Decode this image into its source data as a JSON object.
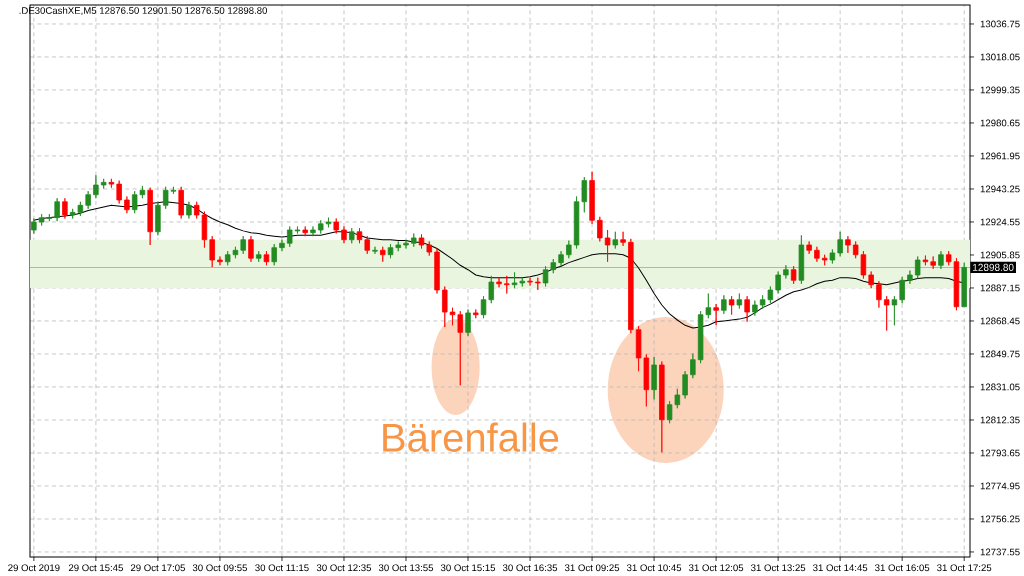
{
  "chart_data": {
    "type": "candlestick",
    "title": ".DE30CashXE,M5  12876.50 12901.50 12876.50 12898.80",
    "annotations": [
      "Bärenfalle"
    ],
    "categories": [
      "29 Oct 2019",
      null,
      null,
      null,
      null,
      null,
      null,
      null,
      "29 Oct 15:45",
      null,
      null,
      null,
      null,
      null,
      null,
      null,
      "29 Oct 17:05",
      null,
      null,
      null,
      null,
      null,
      null,
      null,
      "30 Oct 09:55",
      null,
      null,
      null,
      null,
      null,
      null,
      null,
      "30 Oct 11:15",
      null,
      null,
      null,
      null,
      null,
      null,
      null,
      "30 Oct 12:35",
      null,
      null,
      null,
      null,
      null,
      null,
      null,
      "30 Oct 13:55",
      null,
      null,
      null,
      null,
      null,
      null,
      null,
      "30 Oct 15:15",
      null,
      null,
      null,
      null,
      null,
      null,
      null,
      "30 Oct 16:35",
      null,
      null,
      null,
      null,
      null,
      null,
      null,
      "31 Oct 09:25",
      null,
      null,
      null,
      null,
      null,
      null,
      null,
      "31 Oct 10:45",
      null,
      null,
      null,
      null,
      null,
      null,
      null,
      "31 Oct 12:05",
      null,
      null,
      null,
      null,
      null,
      null,
      null,
      "31 Oct 13:25",
      null,
      null,
      null,
      null,
      null,
      null,
      null,
      "31 Oct 14:45",
      null,
      null,
      null,
      null,
      null,
      null,
      null,
      "31 Oct 16:05",
      null,
      null,
      null,
      null,
      null,
      null,
      null,
      "31 Oct 17:25"
    ],
    "ohlc": [
      [
        12920,
        12926.5,
        12918,
        12924.5
      ],
      [
        12924.5,
        12929,
        12922.5,
        12927
      ],
      [
        12926.5,
        12929,
        12925,
        12927
      ],
      [
        12927,
        12938,
        12925,
        12936
      ],
      [
        12936,
        12938,
        12926.5,
        12928.5
      ],
      [
        12928.5,
        12932,
        12926.5,
        12930
      ],
      [
        12930,
        12936,
        12928,
        12934
      ],
      [
        12934,
        12942,
        12932,
        12940
      ],
      [
        12940,
        12951,
        12938,
        12945.5
      ],
      [
        12945.5,
        12949,
        12943.5,
        12947
      ],
      [
        12947,
        12949,
        12944,
        12946
      ],
      [
        12946,
        12948,
        12935,
        12937
      ],
      [
        12937,
        12939,
        12929.5,
        12931.5
      ],
      [
        12931.5,
        12942,
        12929.5,
        12940
      ],
      [
        12940,
        12945,
        12938,
        12942.5
      ],
      [
        12942.5,
        12944,
        12911.5,
        12919
      ],
      [
        12919,
        12936,
        12917,
        12934
      ],
      [
        12934,
        12944.5,
        12932,
        12942.5
      ],
      [
        12942,
        12944.5,
        12940.5,
        12942.5
      ],
      [
        12942.5,
        12944.5,
        12926.5,
        12928.5
      ],
      [
        12928.5,
        12936,
        12926.5,
        12934
      ],
      [
        12934,
        12936,
        12926.5,
        12928.5
      ],
      [
        12928.5,
        12930.5,
        12910,
        12914.5
      ],
      [
        12914.5,
        12916.5,
        12899,
        12903
      ],
      [
        12903,
        12905,
        12900,
        12902
      ],
      [
        12902,
        12908,
        12900,
        12906
      ],
      [
        12906,
        12910.5,
        12904,
        12908.5
      ],
      [
        12908.5,
        12916.5,
        12906.5,
        12914.5
      ],
      [
        12914.5,
        12916.5,
        12902,
        12904
      ],
      [
        12904,
        12908,
        12902,
        12906
      ],
      [
        12906,
        12908,
        12900,
        12902
      ],
      [
        12902,
        12912,
        12900,
        12910
      ],
      [
        12910,
        12914.5,
        12908,
        12912.5
      ],
      [
        12912.5,
        12922,
        12910.5,
        12920
      ],
      [
        12919.5,
        12922,
        12918,
        12920
      ],
      [
        12920,
        12922,
        12916.5,
        12918.5
      ],
      [
        12918.5,
        12922,
        12916.5,
        12920
      ],
      [
        12920,
        12925.5,
        12918,
        12923.5
      ],
      [
        12923.5,
        12927,
        12921.5,
        12924.5
      ],
      [
        12924.5,
        12926.5,
        12918,
        12920
      ],
      [
        12920,
        12922,
        12912.5,
        12914.5
      ],
      [
        12914.5,
        12921,
        12912.5,
        12919
      ],
      [
        12919,
        12921,
        12912.5,
        12914.5
      ],
      [
        12914.5,
        12916.5,
        12906.5,
        12908.5
      ],
      [
        12908,
        12910.5,
        12906.5,
        12908.5
      ],
      [
        12908.5,
        12910.5,
        12902,
        12906
      ],
      [
        12906,
        12912,
        12904,
        12910
      ],
      [
        12910,
        12913.5,
        12908,
        12911.5
      ],
      [
        12911.5,
        12914.5,
        12909.5,
        12912.5
      ],
      [
        12912.5,
        12918,
        12910.5,
        12915.5
      ],
      [
        12915.5,
        12917.5,
        12909.5,
        12911.5
      ],
      [
        12911.5,
        12913.5,
        12905.5,
        12907.5
      ],
      [
        12907.5,
        12909.5,
        12884,
        12886
      ],
      [
        12886,
        12888,
        12865,
        12873.5
      ],
      [
        12873.5,
        12876,
        12866,
        12872
      ],
      [
        12872,
        12874,
        12832,
        12862
      ],
      [
        12862,
        12875,
        12860,
        12873
      ],
      [
        12873,
        12875,
        12870,
        12872
      ],
      [
        12872,
        12882.5,
        12870,
        12880.5
      ],
      [
        12880.5,
        12894,
        12878.5,
        12890.5
      ],
      [
        12890.5,
        12893,
        12887.5,
        12889.5
      ],
      [
        12889.5,
        12894,
        12884,
        12889
      ],
      [
        12889,
        12896,
        12887,
        12890
      ],
      [
        12890,
        12893,
        12888,
        12891
      ],
      [
        12891,
        12893,
        12888.5,
        12890.5
      ],
      [
        12890.5,
        12893,
        12886,
        12890
      ],
      [
        12890,
        12899.5,
        12888,
        12897.5
      ],
      [
        12897.5,
        12903.5,
        12895.5,
        12901.5
      ],
      [
        12901.5,
        12908,
        12899.5,
        12906
      ],
      [
        12906,
        12914,
        12904,
        12911.5
      ],
      [
        12911.5,
        12939,
        12909.5,
        12936
      ],
      [
        12936,
        12950,
        12930,
        12948
      ],
      [
        12948,
        12953,
        12923.5,
        12925.5
      ],
      [
        12925.5,
        12927.5,
        12913.5,
        12915.5
      ],
      [
        12915.5,
        12920,
        12902,
        12911.5
      ],
      [
        12911.5,
        12919,
        12909.5,
        12914.5
      ],
      [
        12914.5,
        12919,
        12911,
        12913
      ],
      [
        12913,
        12915,
        12861.5,
        12863.5
      ],
      [
        12863.5,
        12865.5,
        12840,
        12847.5
      ],
      [
        12847.5,
        12849.5,
        12820,
        12829.5
      ],
      [
        12829.5,
        12848,
        12824,
        12843.5
      ],
      [
        12843.5,
        12845.5,
        12794,
        12812.5
      ],
      [
        12812.5,
        12823,
        12810.5,
        12821
      ],
      [
        12821,
        12830,
        12819,
        12826.5
      ],
      [
        12826.5,
        12840,
        12824.5,
        12838
      ],
      [
        12838,
        12850,
        12836,
        12846.5
      ],
      [
        12846.5,
        12874,
        12844.5,
        12872
      ],
      [
        12872,
        12884,
        12870,
        12876
      ],
      [
        12876,
        12878,
        12866,
        12874.5
      ],
      [
        12874.5,
        12883,
        12872.5,
        12880.5
      ],
      [
        12880.5,
        12882.5,
        12872,
        12877.5
      ],
      [
        12877.5,
        12884,
        12875.5,
        12880.5
      ],
      [
        12880.5,
        12882.5,
        12868,
        12873.5
      ],
      [
        12873.5,
        12880,
        12871.5,
        12877.5
      ],
      [
        12877.5,
        12883,
        12875.5,
        12880.5
      ],
      [
        12880.5,
        12888,
        12878.5,
        12886
      ],
      [
        12886,
        12896.5,
        12884,
        12894.5
      ],
      [
        12894.5,
        12900,
        12892.5,
        12897.5
      ],
      [
        12897.5,
        12899.5,
        12889.5,
        12891.5
      ],
      [
        12891.5,
        12917,
        12889.5,
        12911.5
      ],
      [
        12911.5,
        12913.5,
        12906.5,
        12908.5
      ],
      [
        12908.5,
        12910.5,
        12902,
        12904
      ],
      [
        12904,
        12906,
        12900,
        12903
      ],
      [
        12903,
        12909,
        12901,
        12907
      ],
      [
        12907,
        12919,
        12905,
        12914.5
      ],
      [
        12914.5,
        12916.5,
        12907,
        12911.5
      ],
      [
        12911.5,
        12913.5,
        12904,
        12906
      ],
      [
        12906,
        12908,
        12892.5,
        12894.5
      ],
      [
        12894.5,
        12896.5,
        12887,
        12889
      ],
      [
        12889,
        12891,
        12876,
        12880.5
      ],
      [
        12880.5,
        12882.5,
        12863,
        12877.5
      ],
      [
        12877.5,
        12882.5,
        12866,
        12880.5
      ],
      [
        12880.5,
        12893.5,
        12878.5,
        12891.5
      ],
      [
        12891.5,
        12897,
        12889.5,
        12894.5
      ],
      [
        12894.5,
        12905,
        12892.5,
        12903
      ],
      [
        12903,
        12905.5,
        12900,
        12902
      ],
      [
        12902,
        12905,
        12898,
        12900
      ],
      [
        12900,
        12908,
        12898,
        12906
      ],
      [
        12906,
        12908,
        12900,
        12902
      ],
      [
        12902,
        12904,
        12874.5,
        12876.5
      ],
      [
        12876.5,
        12901.5,
        12876.5,
        12898.8
      ]
    ],
    "colors": [
      "#228b22",
      "#228b22",
      "#228b22",
      "#228b22",
      "#ff0000",
      "#228b22",
      "#228b22",
      "#228b22",
      "#228b22",
      "#228b22",
      "#ff0000",
      "#ff0000",
      "#ff0000",
      "#228b22",
      "#228b22",
      "#ff0000",
      "#228b22",
      "#228b22",
      "#228b22",
      "#ff0000",
      "#228b22",
      "#ff0000",
      "#ff0000",
      "#ff0000",
      "#ff0000",
      "#228b22",
      "#228b22",
      "#228b22",
      "#ff0000",
      "#228b22",
      "#ff0000",
      "#228b22",
      "#228b22",
      "#228b22",
      "#228b22",
      "#ff0000",
      "#228b22",
      "#228b22",
      "#228b22",
      "#ff0000",
      "#ff0000",
      "#228b22",
      "#ff0000",
      "#ff0000",
      "#228b22",
      "#ff0000",
      "#228b22",
      "#228b22",
      "#228b22",
      "#228b22",
      "#ff0000",
      "#ff0000",
      "#ff0000",
      "#ff0000",
      "#ff0000",
      "#ff0000",
      "#228b22",
      "#ff0000",
      "#228b22",
      "#228b22",
      "#ff0000",
      "#ff0000",
      "#228b22",
      "#228b22",
      "#ff0000",
      "#ff0000",
      "#228b22",
      "#228b22",
      "#228b22",
      "#228b22",
      "#228b22",
      "#228b22",
      "#ff0000",
      "#ff0000",
      "#ff0000",
      "#228b22",
      "#ff0000",
      "#ff0000",
      "#ff0000",
      "#ff0000",
      "#228b22",
      "#ff0000",
      "#228b22",
      "#228b22",
      "#228b22",
      "#228b22",
      "#228b22",
      "#228b22",
      "#ff0000",
      "#228b22",
      "#ff0000",
      "#228b22",
      "#ff0000",
      "#228b22",
      "#228b22",
      "#228b22",
      "#228b22",
      "#228b22",
      "#ff0000",
      "#228b22",
      "#ff0000",
      "#ff0000",
      "#ff0000",
      "#228b22",
      "#228b22",
      "#ff0000",
      "#ff0000",
      "#ff0000",
      "#ff0000",
      "#ff0000",
      "#ff0000",
      "#228b22",
      "#228b22",
      "#228b22",
      "#228b22",
      "#ff0000",
      "#ff0000",
      "#228b22",
      "#ff0000",
      "#ff0000",
      "#228b22"
    ],
    "series": [
      {
        "type": "line",
        "color": "#000000",
        "values": [
          12925.5,
          12926.5,
          12927,
          12927.5,
          12928,
          12928.5,
          12929.5,
          12931,
          12932,
          12933,
          12934,
          12933.5,
          12933,
          12933.5,
          12934,
          12935,
          12935.5,
          12936,
          12935.5,
          12935,
          12934,
          12932,
          12929,
          12926.5,
          12924.5,
          12923,
          12921,
          12919.5,
          12918.5,
          12918,
          12917,
          12916.5,
          12916,
          12916.5,
          12917,
          12917,
          12917,
          12917,
          12918,
          12919,
          12919,
          12918.5,
          12917,
          12915.5,
          12915,
          12914.5,
          12914.5,
          12914,
          12914,
          12913,
          12913,
          12911.5,
          12909.5,
          12906.5,
          12903.5,
          12900,
          12897.5,
          12894.5,
          12893.5,
          12893,
          12893,
          12893,
          12893,
          12893,
          12893.5,
          12894.5,
          12896,
          12898,
          12899.5,
          12901.5,
          12903,
          12904.5,
          12906,
          12906.5,
          12906.5,
          12906.5,
          12906,
          12904,
          12898.5,
          12891.5,
          12884,
          12877.5,
          12872.5,
          12869,
          12866,
          12864.5,
          12865,
          12866,
          12868,
          12868.5,
          12869,
          12869.5,
          12870.5,
          12873,
          12876,
          12878,
          12880.5,
          12883,
          12885,
          12886,
          12887.5,
          12889.5,
          12891,
          12891.5,
          12893,
          12893,
          12892.5,
          12891,
          12890,
          12889.5,
          12889,
          12890,
          12891,
          12891.5,
          12892.5,
          12893,
          12893,
          12893,
          12892.5,
          12891,
          12890
        ]
      }
    ],
    "ylim": [
      12734.7,
      13047.5
    ],
    "yticks": [
      12737.55,
      12756.25,
      12774.95,
      12793.65,
      12812.35,
      12831.05,
      12849.75,
      12868.45,
      12887.15,
      12905.85,
      12924.55,
      12943.25,
      12961.95,
      12980.65,
      12999.35,
      13018.05,
      13036.75
    ],
    "grid": true,
    "ref_lines": [
      {
        "axis": "y",
        "value": 12898.8,
        "label": "12898.80",
        "color": "#b4b4b4"
      }
    ],
    "bands": [
      {
        "axis": "y",
        "from": 12887,
        "to": 12914.5,
        "color": "#e9f5df"
      }
    ]
  }
}
